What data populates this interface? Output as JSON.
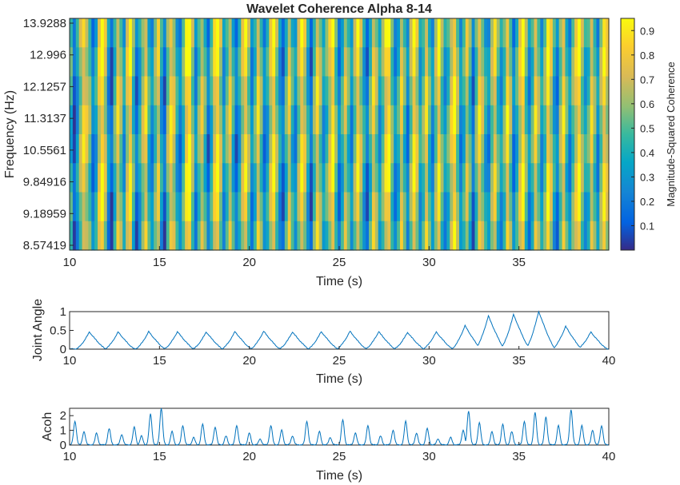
{
  "chart_data": [
    {
      "type": "heatmap",
      "title": "Wavelet Coherence Alpha 8-14",
      "xlabel": "Time (s)",
      "ylabel": "Frequency (Hz)",
      "xlim": [
        10,
        40
      ],
      "x_ticks": [
        10,
        15,
        20,
        25,
        30,
        35
      ],
      "y_tick_labels": [
        "13.9288",
        "12.996",
        "12.1257",
        "11.3137",
        "10.5561",
        "9.84916",
        "9.18959",
        "8.57419"
      ],
      "colormap": "parula",
      "colorbar": {
        "label": "Magnitude-Squared Coherence",
        "ticks": [
          "0.9",
          "0.8",
          "0.7",
          "0.6",
          "0.5",
          "0.4",
          "0.3",
          "0.2",
          "0.1"
        ],
        "range": [
          0,
          0.95
        ]
      },
      "value_columns": [
        0.45,
        0.12,
        0.35,
        0.62,
        0.82,
        0.72,
        0.55,
        0.25,
        0.4,
        0.75,
        0.9,
        0.68,
        0.3,
        0.15,
        0.5,
        0.78,
        0.6,
        0.35,
        0.7,
        0.85,
        0.5,
        0.2,
        0.4,
        0.65,
        0.8,
        0.45,
        0.3,
        0.55,
        0.75,
        0.38,
        0.18,
        0.6,
        0.82,
        0.7,
        0.4,
        0.25,
        0.5,
        0.85,
        0.95,
        0.6,
        0.3,
        0.55,
        0.72,
        0.5,
        0.2,
        0.45,
        0.78,
        0.9,
        0.65,
        0.35,
        0.55,
        0.75,
        0.45,
        0.2,
        0.4,
        0.68,
        0.85,
        0.6,
        0.3,
        0.5,
        0.8,
        0.55,
        0.25,
        0.4,
        0.7,
        0.88,
        0.6,
        0.35,
        0.2,
        0.5,
        0.75,
        0.45,
        0.3,
        0.62,
        0.85,
        0.7,
        0.4,
        0.18,
        0.55,
        0.8,
        0.6,
        0.35,
        0.5,
        0.72,
        0.9,
        0.55,
        0.25,
        0.45,
        0.7,
        0.5,
        0.3,
        0.6,
        0.85,
        0.65,
        0.4,
        0.2,
        0.5,
        0.78,
        0.6,
        0.35,
        0.55,
        0.82,
        0.9,
        0.55,
        0.3,
        0.45,
        0.75,
        0.5,
        0.25,
        0.6,
        0.88,
        0.7,
        0.4,
        0.55,
        0.8,
        0.5,
        0.3,
        0.6,
        0.85,
        0.55,
        0.35,
        0.5,
        0.75,
        0.9,
        0.6,
        0.3,
        0.45,
        0.7,
        0.5,
        0.2,
        0.55,
        0.82,
        0.65,
        0.4,
        0.3,
        0.6,
        0.78,
        0.5,
        0.35,
        0.55,
        0.85,
        0.6,
        0.25,
        0.45,
        0.72,
        0.9,
        0.55,
        0.3,
        0.5,
        0.8,
        0.6,
        0.35,
        0.55,
        0.88,
        0.7,
        0.4,
        0.25,
        0.6,
        0.82,
        0.5,
        0.3,
        0.55,
        0.75,
        0.9,
        0.6,
        0.4,
        0.5,
        0.78,
        0.55,
        0.3,
        0.6,
        0.85,
        0.7
      ]
    },
    {
      "type": "line",
      "ylabel": "Joint Angle",
      "xlabel": "Time (s)",
      "xlim": [
        10,
        40
      ],
      "ylim": [
        0,
        1
      ],
      "x_ticks": [
        10,
        15,
        20,
        25,
        30,
        35,
        40
      ],
      "y_ticks": [
        0,
        0.5,
        1
      ],
      "series_color": "#0072BD",
      "peaks": [
        [
          11.1,
          0.45
        ],
        [
          12.7,
          0.45
        ],
        [
          14.4,
          0.46
        ],
        [
          16.0,
          0.46
        ],
        [
          17.6,
          0.45
        ],
        [
          19.2,
          0.46
        ],
        [
          20.8,
          0.47
        ],
        [
          22.4,
          0.45
        ],
        [
          24.0,
          0.46
        ],
        [
          25.6,
          0.47
        ],
        [
          27.2,
          0.46
        ],
        [
          28.8,
          0.44
        ],
        [
          30.4,
          0.45
        ],
        [
          32.0,
          0.62
        ],
        [
          33.3,
          0.88
        ],
        [
          34.7,
          0.92
        ],
        [
          36.1,
          1.0
        ],
        [
          37.6,
          0.6
        ],
        [
          39.0,
          0.45
        ]
      ]
    },
    {
      "type": "line",
      "ylabel": "Acoh",
      "xlabel": "Time (s)",
      "xlim": [
        10,
        40
      ],
      "ylim": [
        0,
        2.5
      ],
      "x_ticks": [
        10,
        15,
        20,
        25,
        30,
        35,
        40
      ],
      "y_ticks": [
        0,
        1,
        2
      ],
      "series_color": "#0072BD",
      "peaks": [
        [
          10.3,
          1.6
        ],
        [
          10.8,
          0.9
        ],
        [
          11.5,
          0.8
        ],
        [
          12.2,
          1.1
        ],
        [
          12.9,
          0.7
        ],
        [
          13.6,
          1.2
        ],
        [
          14.0,
          0.6
        ],
        [
          14.5,
          2.1
        ],
        [
          15.1,
          2.5
        ],
        [
          15.7,
          0.9
        ],
        [
          16.3,
          1.3
        ],
        [
          16.9,
          0.5
        ],
        [
          17.4,
          1.4
        ],
        [
          18.1,
          1.2
        ],
        [
          18.7,
          0.6
        ],
        [
          19.3,
          1.3
        ],
        [
          20.0,
          0.8
        ],
        [
          20.6,
          0.4
        ],
        [
          21.2,
          1.3
        ],
        [
          21.8,
          1.0
        ],
        [
          22.4,
          0.6
        ],
        [
          23.2,
          1.6
        ],
        [
          23.9,
          0.9
        ],
        [
          24.5,
          0.5
        ],
        [
          25.2,
          1.7
        ],
        [
          25.9,
          0.8
        ],
        [
          26.6,
          1.3
        ],
        [
          27.3,
          0.6
        ],
        [
          28.0,
          1.0
        ],
        [
          28.7,
          1.6
        ],
        [
          29.3,
          0.8
        ],
        [
          29.9,
          1.1
        ],
        [
          30.5,
          0.4
        ],
        [
          31.2,
          0.5
        ],
        [
          31.9,
          1.0
        ],
        [
          32.2,
          2.3
        ],
        [
          32.8,
          1.5
        ],
        [
          33.5,
          0.9
        ],
        [
          34.1,
          1.4
        ],
        [
          34.6,
          0.9
        ],
        [
          35.3,
          1.6
        ],
        [
          35.9,
          2.2
        ],
        [
          36.5,
          1.9
        ],
        [
          37.2,
          1.3
        ],
        [
          37.9,
          2.4
        ],
        [
          38.5,
          1.3
        ],
        [
          39.1,
          1.0
        ],
        [
          39.6,
          1.3
        ]
      ]
    }
  ]
}
